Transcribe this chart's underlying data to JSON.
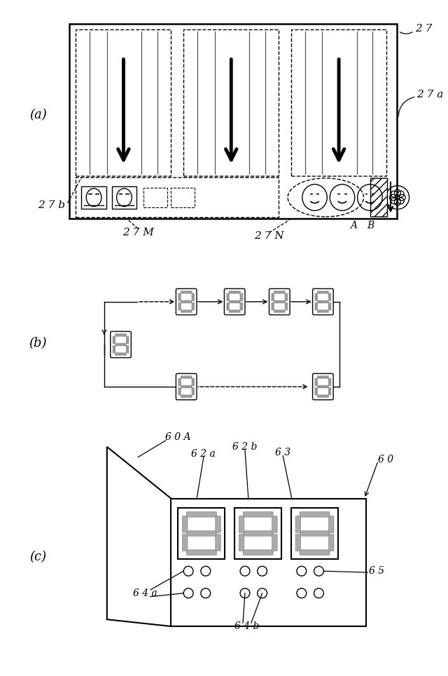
{
  "bg_color": "#ffffff",
  "panel_a": {
    "label": "(a)",
    "label_27": "2 7",
    "label_27a": "2 7 a",
    "label_27b": "2 7 b",
    "label_27M": "2 7 M",
    "label_27N": "2 7 N",
    "label_A": "A",
    "label_B": "B"
  },
  "panel_b": {
    "label": "(b)"
  },
  "panel_c": {
    "label": "(c)",
    "label_60A": "6 0 A",
    "label_62a": "6 2 a",
    "label_62b": "6 2 b",
    "label_63": "6 3",
    "label_60": "6 0",
    "label_64a": "6 4 a",
    "label_64b": "6 4 b",
    "label_65": "6 5"
  }
}
